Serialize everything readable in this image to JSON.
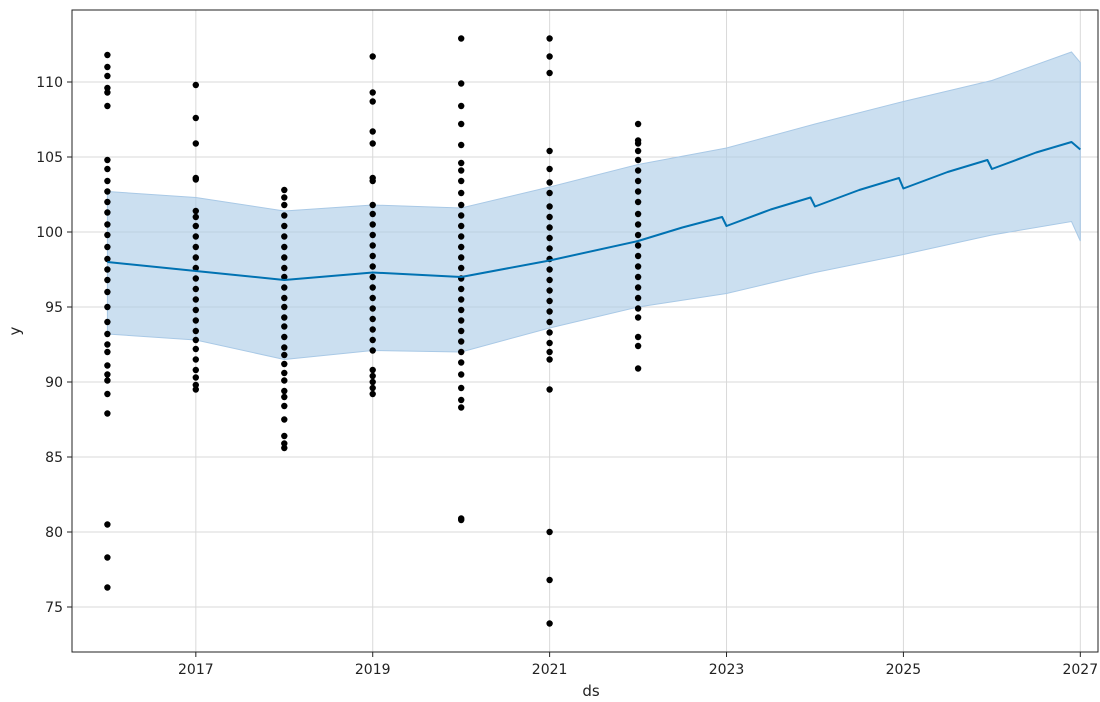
{
  "chart_data": {
    "type": "line",
    "title": "",
    "xlabel": "ds",
    "ylabel": "y",
    "xlim": [
      2015.6,
      2027.2
    ],
    "ylim": [
      72,
      114.8
    ],
    "grid": true,
    "legend": "none",
    "colors": {
      "forecast": "#0072B2",
      "band": "#a9c9e6",
      "points": "#000000",
      "grid": "#d9d9d9"
    },
    "x_ticks": [
      2017,
      2019,
      2021,
      2023,
      2025,
      2027
    ],
    "x_tick_labels": [
      "2017",
      "2019",
      "2021",
      "2023",
      "2025",
      "2027"
    ],
    "y_ticks": [
      75,
      80,
      85,
      90,
      95,
      100,
      105,
      110
    ],
    "y_tick_labels": [
      "75",
      "80",
      "85",
      "90",
      "95",
      "100",
      "105",
      "110"
    ],
    "forecast": {
      "x": [
        2016.0,
        2017.0,
        2018.0,
        2019.0,
        2020.0,
        2021.0,
        2022.0,
        2022.5,
        2022.95,
        2023.0,
        2023.5,
        2023.95,
        2024.0,
        2024.5,
        2024.95,
        2025.0,
        2025.5,
        2025.95,
        2026.0,
        2026.5,
        2026.9,
        2027.0
      ],
      "y": [
        98.0,
        97.4,
        96.8,
        97.3,
        97.0,
        98.1,
        99.4,
        100.3,
        101.0,
        100.4,
        101.5,
        102.3,
        101.7,
        102.8,
        103.6,
        102.9,
        104.0,
        104.8,
        104.2,
        105.3,
        106.0,
        105.5
      ]
    },
    "uncertainty_upper": {
      "x": [
        2016.0,
        2017.0,
        2018.0,
        2019.0,
        2020.0,
        2021.0,
        2022.0,
        2023.0,
        2024.0,
        2025.0,
        2026.0,
        2026.9,
        2027.0
      ],
      "y": [
        102.7,
        102.3,
        101.4,
        101.8,
        101.6,
        103.0,
        104.5,
        105.6,
        107.2,
        108.7,
        110.1,
        112.0,
        111.3
      ]
    },
    "uncertainty_lower": {
      "x": [
        2016.0,
        2017.0,
        2018.0,
        2019.0,
        2020.0,
        2021.0,
        2022.0,
        2023.0,
        2024.0,
        2025.0,
        2026.0,
        2026.9,
        2027.0
      ],
      "y": [
        93.2,
        92.8,
        91.5,
        92.1,
        92.0,
        93.6,
        95.0,
        95.9,
        97.3,
        98.5,
        99.8,
        100.7,
        99.4
      ]
    },
    "observed": [
      {
        "x": 2016.0,
        "y": [
          76.3,
          78.3,
          80.5,
          87.9,
          89.2,
          90.1,
          90.5,
          91.1,
          92.0,
          92.5,
          93.2,
          94.0,
          95.0,
          96.0,
          96.8,
          97.5,
          98.2,
          99.0,
          99.8,
          100.5,
          101.3,
          102.0,
          102.7,
          103.4,
          104.2,
          104.8,
          108.4,
          109.3,
          109.6,
          110.4,
          111.0,
          111.8
        ]
      },
      {
        "x": 2017.0,
        "y": [
          89.5,
          89.8,
          90.3,
          90.8,
          91.5,
          92.2,
          92.8,
          93.4,
          94.1,
          94.8,
          95.5,
          96.2,
          96.9,
          97.6,
          98.3,
          99.0,
          99.7,
          100.4,
          101.0,
          101.4,
          103.5,
          103.6,
          105.9,
          107.6,
          109.8
        ]
      },
      {
        "x": 2018.0,
        "y": [
          85.6,
          85.9,
          86.4,
          87.5,
          88.4,
          89.0,
          89.4,
          90.1,
          90.6,
          91.2,
          91.8,
          92.3,
          93.0,
          93.7,
          94.3,
          95.0,
          95.6,
          96.3,
          97.0,
          97.6,
          98.3,
          99.0,
          99.7,
          100.4,
          101.1,
          101.8,
          102.3,
          102.8
        ]
      },
      {
        "x": 2019.0,
        "y": [
          89.2,
          89.6,
          90.0,
          90.4,
          90.8,
          92.1,
          92.8,
          93.5,
          94.2,
          94.9,
          95.6,
          96.3,
          97.0,
          97.7,
          98.4,
          99.1,
          99.8,
          100.5,
          101.2,
          101.8,
          103.4,
          103.6,
          105.9,
          106.7,
          108.7,
          109.3,
          111.7
        ]
      },
      {
        "x": 2020.0,
        "y": [
          80.8,
          80.9,
          88.3,
          88.8,
          89.6,
          90.5,
          91.3,
          92.0,
          92.7,
          93.4,
          94.1,
          94.8,
          95.5,
          96.2,
          96.9,
          97.6,
          98.3,
          99.0,
          99.7,
          100.4,
          101.1,
          101.8,
          102.6,
          103.4,
          104.1,
          104.6,
          105.8,
          107.2,
          108.4,
          109.9,
          112.9
        ]
      },
      {
        "x": 2021.0,
        "y": [
          73.9,
          76.8,
          80.0,
          89.5,
          91.5,
          92.0,
          92.6,
          93.3,
          94.0,
          94.7,
          95.4,
          96.1,
          96.8,
          97.5,
          98.2,
          98.9,
          99.6,
          100.3,
          101.0,
          101.7,
          102.6,
          103.3,
          104.2,
          105.4,
          110.6,
          111.7,
          112.9
        ]
      },
      {
        "x": 2022.0,
        "y": [
          90.9,
          92.4,
          93.0,
          94.3,
          94.9,
          95.6,
          96.3,
          97.0,
          97.7,
          98.4,
          99.1,
          99.8,
          100.5,
          101.2,
          102.0,
          102.7,
          103.4,
          104.1,
          104.8,
          105.4,
          105.9,
          106.1,
          107.2
        ]
      }
    ]
  }
}
